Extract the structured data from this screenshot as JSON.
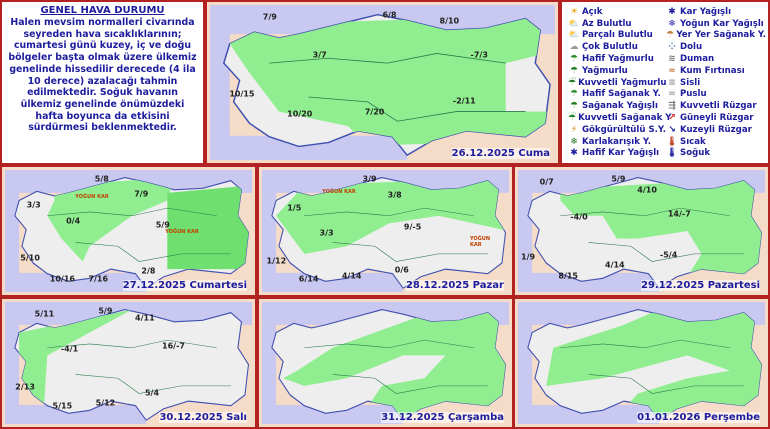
{
  "summary": {
    "title": "GENEL HAVA DURUMU",
    "text": "Halen mevsim normalleri civarında seyreden hava sıcaklıklarının; cumartesi günü kuzey, iç ve doğu bölgeler başta olmak üzere ülkemiz genelinde hissedilir derecede (4 ila 10 derece) azalacağı tahmin edilmektedir. Soğuk havanın ülkemiz genelinde önümüzdeki hafta boyunca da etkisini sürdürmesi beklenmektedir."
  },
  "legend": [
    {
      "label": "Açık",
      "icon": "sun-icon"
    },
    {
      "label": "Az Bulutlu",
      "icon": "sun-small-cloud-icon"
    },
    {
      "label": "Parçalı Bulutlu",
      "icon": "partly-cloudy-icon"
    },
    {
      "label": "Çok Bulutlu",
      "icon": "cloud-icon"
    },
    {
      "label": "Hafif Yağmurlu",
      "icon": "light-rain-icon"
    },
    {
      "label": "Yağmurlu",
      "icon": "rain-icon"
    },
    {
      "label": "Kuvvetli Yağmurlu",
      "icon": "heavy-rain-icon"
    },
    {
      "label": "Hafif Sağanak Y.",
      "icon": "light-shower-icon"
    },
    {
      "label": "Sağanak Yağışlı",
      "icon": "shower-icon"
    },
    {
      "label": "Kuvvetli Sağanak Y",
      "icon": "heavy-shower-icon"
    },
    {
      "label": "Gökgürültülü S.Y.",
      "icon": "thunderstorm-icon"
    },
    {
      "label": "Karlakarışık Y.",
      "icon": "sleet-icon"
    },
    {
      "label": "Hafif Kar Yağışlı",
      "icon": "light-snow-icon"
    },
    {
      "label": "Kar Yağışlı",
      "icon": "snow-icon"
    },
    {
      "label": "Yoğun Kar Yağışlı",
      "icon": "heavy-snow-icon"
    },
    {
      "label": "Yer Yer Sağanak Y.",
      "icon": "scattered-shower-icon"
    },
    {
      "label": "Dolu",
      "icon": "hail-icon"
    },
    {
      "label": "Duman",
      "icon": "smoke-icon"
    },
    {
      "label": "Kum Fırtınası",
      "icon": "sandstorm-icon"
    },
    {
      "label": "Sisli",
      "icon": "fog-icon"
    },
    {
      "label": "Puslu",
      "icon": "haze-icon"
    },
    {
      "label": "Kuvvetli Rüzgar",
      "icon": "strong-wind-icon"
    },
    {
      "label": "Güneyli Rüzgar",
      "icon": "south-wind-arrow-icon"
    },
    {
      "label": "Kuzeyli Rüzgar",
      "icon": "north-wind-arrow-icon"
    },
    {
      "label": "Sıcak",
      "icon": "hot-thermometer-icon"
    },
    {
      "label": "Soğuk",
      "icon": "cold-thermometer-icon"
    }
  ],
  "colors": {
    "land": "#eeeeee",
    "precip_area": "#90ee90",
    "sea": "#c8c8f0",
    "neighbor": "#f5dcc8",
    "text": "#1c1c9c",
    "border": "#b22222"
  },
  "maps": [
    {
      "date": "26.12.2025 Cuma",
      "temps": [
        "7/9",
        "6/8",
        "8/10",
        "3/7",
        "-7/3",
        "10/15",
        "10/20",
        "7/20",
        "-2/11"
      ]
    },
    {
      "date": "27.12.2025 Cumartesi",
      "temps": [
        "5/8",
        "7/9",
        "3/3",
        "0/4",
        "5/9",
        "5/10",
        "10/16",
        "7/16",
        "2/8"
      ],
      "labels": [
        "YOĞUN KAR",
        "YOĞUN KAR"
      ]
    },
    {
      "date": "28.12.2025 Pazar",
      "temps": [
        "3/9",
        "3/8",
        "1/5",
        "3/3",
        "9/-5",
        "1/12",
        "6/14",
        "4/14",
        "0/6"
      ],
      "labels": [
        "YOĞUN KAR",
        "YOĞUN KAR"
      ]
    },
    {
      "date": "29.12.2025 Pazartesi",
      "temps": [
        "0/7",
        "5/9",
        "4/10",
        "-4/0",
        "14/-7",
        "1/9",
        "8/15",
        "4/14",
        "-5/4"
      ]
    },
    {
      "date": "30.12.2025 Salı",
      "temps": [
        "5/11",
        "5/9",
        "4/11",
        "-4/1",
        "16/-7",
        "2/13",
        "5/15",
        "5/12",
        "5/4"
      ]
    },
    {
      "date": "31.12.2025 Çarşamba",
      "temps": []
    },
    {
      "date": "01.01.2026 Perşembe",
      "temps": []
    }
  ]
}
